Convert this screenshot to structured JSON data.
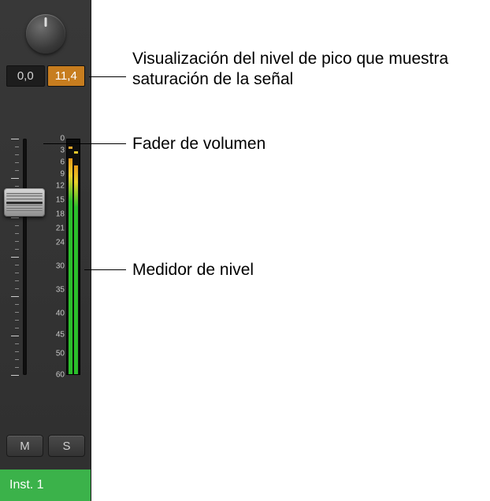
{
  "channel": {
    "pan_value": 0,
    "peak_left": "0,0",
    "peak_right": "11,4",
    "peak_left_bg": "#1d1d1d",
    "peak_left_fg": "#d4d4d4",
    "peak_right_bg": "#c77d1f",
    "peak_right_fg": "#ffffff",
    "fader": {
      "position_pct": 27,
      "track_color": "#111111",
      "cap_gradient_top": "#d8d8d8",
      "cap_gradient_bottom": "#8f8f8f"
    },
    "meter": {
      "scale_marks": [
        "0",
        "3",
        "6",
        "9",
        "12",
        "15",
        "18",
        "21",
        "24",
        "30",
        "35",
        "40",
        "45",
        "50",
        "60"
      ],
      "scale_positions_pct": [
        0,
        5,
        10,
        15,
        20,
        26,
        32,
        38,
        44,
        54,
        64,
        74,
        83,
        91,
        100
      ],
      "left_fill_pct": 92,
      "right_fill_pct": 89,
      "left_peak_pct": 96,
      "right_peak_pct": 94,
      "peak_color_left": "#e6a62a",
      "peak_color_right": "#e6c72a",
      "bg_color": "#0d0d0d",
      "label_color": "#c8c8c8"
    },
    "mute_label": "M",
    "solo_label": "S",
    "track_name": "Inst. 1",
    "track_color": "#3bb24a"
  },
  "callouts": {
    "peak": "Visualización del nivel de pico que muestra saturación de la señal",
    "fader": "Fader de volumen",
    "meter": "Medidor de nivel"
  },
  "style": {
    "strip_bg_top": "#383838",
    "strip_bg_bottom": "#2f2f2f",
    "font_family": "Helvetica",
    "callout_fontsize": 21
  }
}
